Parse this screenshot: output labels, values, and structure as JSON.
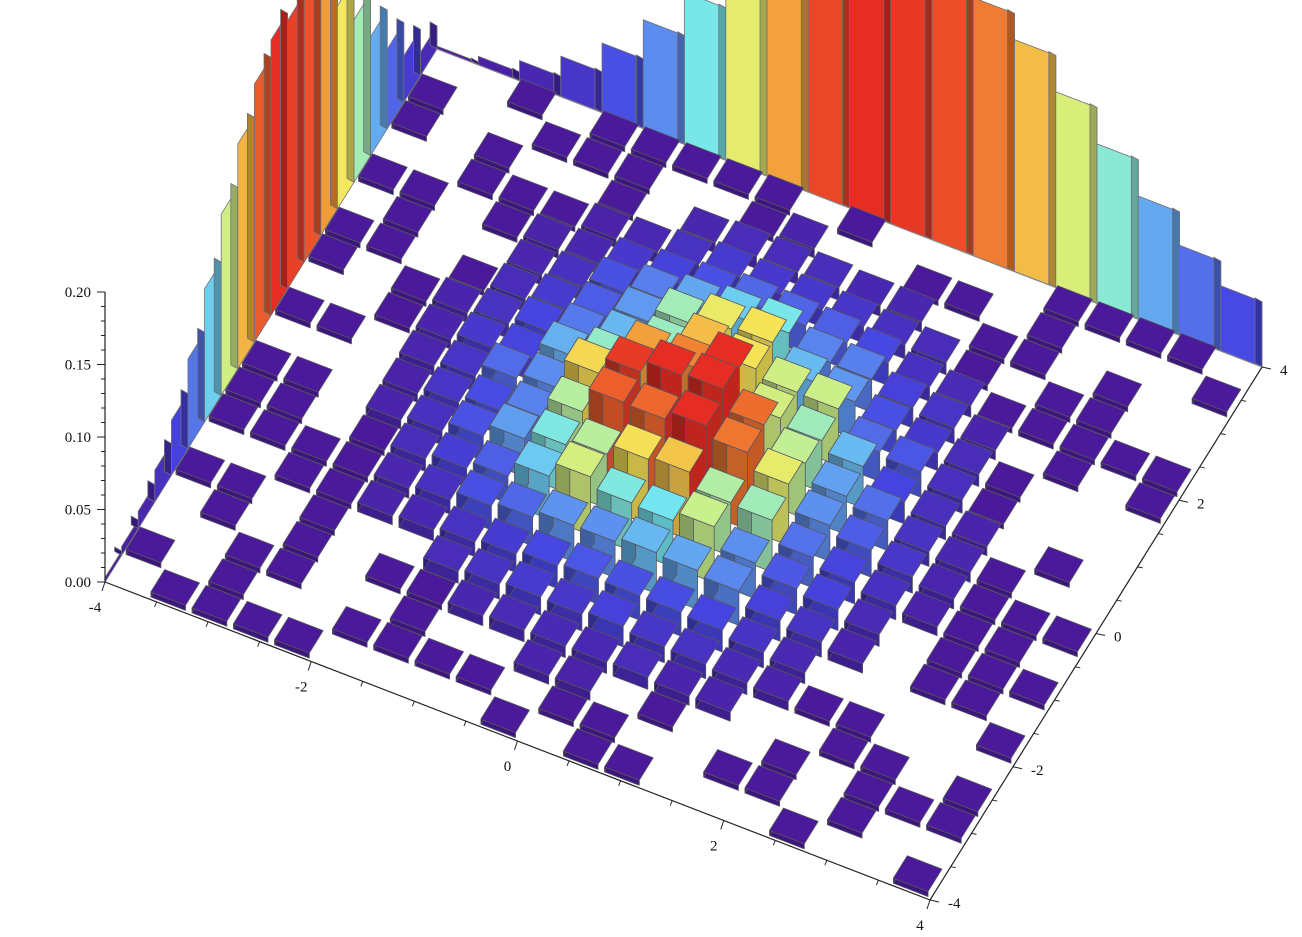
{
  "chart_data": {
    "type": "histogram3d",
    "title": "",
    "xlabel": "",
    "ylabel": "",
    "zlabel": "",
    "x_range": [
      -4,
      4
    ],
    "y_range": [
      -4,
      4
    ],
    "z_range": [
      0,
      0.2
    ],
    "bin_width": 0.4,
    "grid": false,
    "legend": "none",
    "axes": {
      "z_ticks": [
        "0.00",
        "0.05",
        "0.10",
        "0.15",
        "0.20"
      ],
      "z_tick_values": [
        0,
        0.05,
        0.1,
        0.15,
        0.2
      ],
      "x_ticks": [
        "-4",
        "-2",
        "0",
        "2",
        "4"
      ],
      "x_tick_values": [
        -4,
        -2,
        0,
        2,
        4
      ],
      "y_ticks": [
        "-4",
        "-2",
        "0",
        "2",
        "4"
      ],
      "y_tick_values": [
        -4,
        -2,
        0,
        2,
        4
      ]
    },
    "marginal_x": {
      "description_axis": "x",
      "bin_centers": [
        -3.8,
        -3.4,
        -3.0,
        -2.6,
        -2.2,
        -1.8,
        -1.4,
        -1.0,
        -0.6,
        -0.2,
        0.2,
        0.6,
        1.0,
        1.4,
        1.8,
        2.2,
        2.6,
        3.0,
        3.4,
        3.8
      ],
      "values": [
        0.002,
        0.006,
        0.014,
        0.028,
        0.048,
        0.075,
        0.105,
        0.14,
        0.168,
        0.192,
        0.199,
        0.196,
        0.19,
        0.178,
        0.16,
        0.135,
        0.11,
        0.085,
        0.062,
        0.045
      ]
    },
    "marginal_y": {
      "description_axis": "y",
      "bin_centers": [
        -3.8,
        -3.4,
        -3.0,
        -2.6,
        -2.2,
        -1.8,
        -1.4,
        -1.0,
        -0.6,
        -0.2,
        0.2,
        0.6,
        1.0,
        1.4,
        1.8,
        2.2,
        2.6,
        3.0,
        3.4,
        3.8
      ],
      "values": [
        0.003,
        0.006,
        0.012,
        0.022,
        0.038,
        0.062,
        0.092,
        0.125,
        0.155,
        0.178,
        0.19,
        0.185,
        0.18,
        0.162,
        0.14,
        0.112,
        0.082,
        0.055,
        0.032,
        0.016
      ]
    },
    "joint": {
      "x_bin_centers": [
        -3.8,
        -3.4,
        -3.0,
        -2.6,
        -2.2,
        -1.8,
        -1.4,
        -1.0,
        -0.6,
        -0.2,
        0.2,
        0.6,
        1.0,
        1.4,
        1.8,
        2.2,
        2.6,
        3.0,
        3.4,
        3.8
      ],
      "y_bin_centers": [
        -3.8,
        -3.4,
        -3.0,
        -2.6,
        -2.2,
        -1.8,
        -1.4,
        -1.0,
        -0.6,
        -0.2,
        0.2,
        0.6,
        1.0,
        1.4,
        1.8,
        2.2,
        2.6,
        3.0,
        3.4,
        3.8
      ],
      "peak_value": 0.055,
      "center": [
        0.0,
        0.2
      ],
      "sigma": [
        1.1,
        1.3
      ],
      "note_values": "bin heights follow a bivariate normal; smallest occupied bins are flat purple tiles"
    },
    "colors": {
      "low": "#4b1a9a",
      "blue": "#3d5ee8",
      "cyan": "#6ee6f0",
      "yellow": "#f4e65a",
      "orange": "#f29a3a",
      "red": "#e83a2a"
    }
  }
}
